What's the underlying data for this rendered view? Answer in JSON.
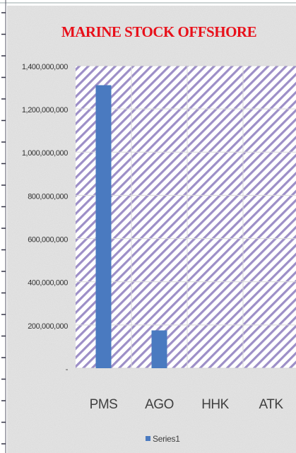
{
  "chart_data": {
    "type": "bar",
    "title": "MARINE STOCK OFFSHORE",
    "categories": [
      "PMS",
      "AGO",
      "HHK",
      "ATK"
    ],
    "series": [
      {
        "name": "Series1",
        "color": "#4a7ac0",
        "values": [
          1310000000,
          175000000,
          0,
          0
        ]
      }
    ],
    "ylim": [
      0,
      1400000000
    ],
    "yticks": [
      {
        "value": 0,
        "label": "-"
      },
      {
        "value": 200000000,
        "label": "200,000,000"
      },
      {
        "value": 400000000,
        "label": "400,000,000"
      },
      {
        "value": 600000000,
        "label": "600,000,000"
      },
      {
        "value": 800000000,
        "label": "800,000,000"
      },
      {
        "value": 1000000000,
        "label": "1,000,000,000"
      },
      {
        "value": 1200000000,
        "label": "1,200,000,000"
      },
      {
        "value": 1400000000,
        "label": "1,400,000,000"
      }
    ],
    "grid": true,
    "legend": "bottom"
  }
}
